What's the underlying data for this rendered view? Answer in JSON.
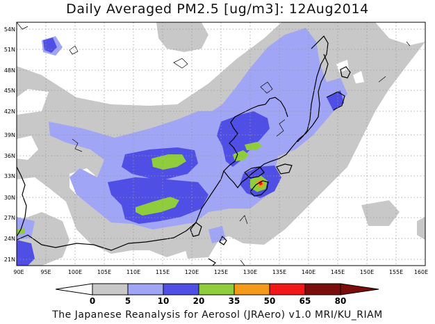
{
  "title": "Daily Averaged PM2.5 [ug/m3]: 12Aug2014",
  "credit": "The Japanese Reanalysis for Aerosol (JRAero) v1.0 MRI/KU_RIAM",
  "lat_labels": [
    "54N",
    "51N",
    "48N",
    "45N",
    "42N",
    "39N",
    "36N",
    "33N",
    "30N",
    "27N",
    "24N",
    "21N"
  ],
  "lon_labels": [
    "90E",
    "95E",
    "100E",
    "105E",
    "110E",
    "115E",
    "120E",
    "125E",
    "130E",
    "135E",
    "140E",
    "145E",
    "150E",
    "155E",
    "160E"
  ],
  "legend": {
    "ticks": [
      "0",
      "5",
      "10",
      "20",
      "35",
      "50",
      "65",
      "80"
    ],
    "colors": [
      "#ffffff",
      "#c8c8c8",
      "#a0a5f5",
      "#4f4fe6",
      "#8fcd3c",
      "#f39a1a",
      "#f21818",
      "#7a0c0c"
    ]
  }
}
